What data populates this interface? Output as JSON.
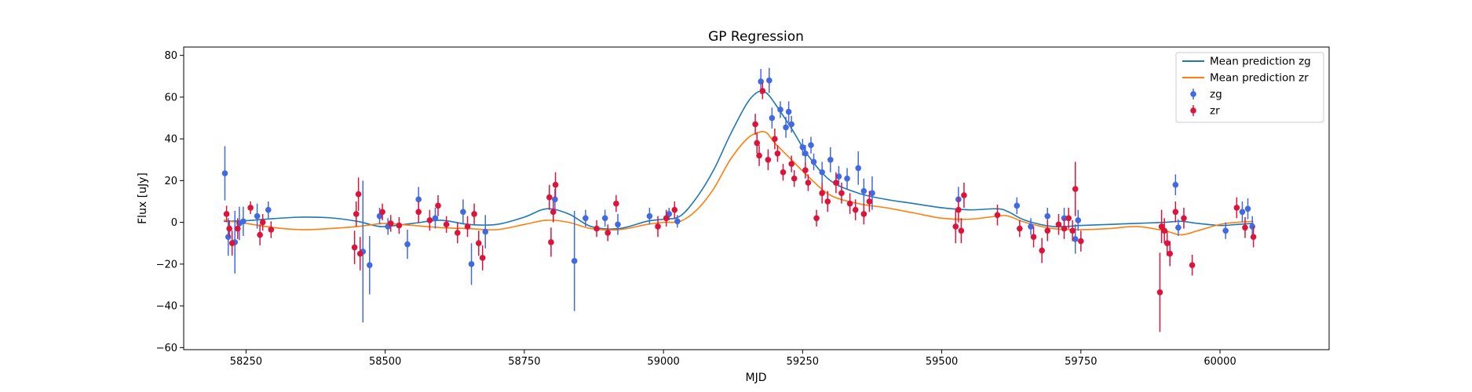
{
  "chart_data": {
    "type": "scatter",
    "title": "GP Regression",
    "xlabel": "MJD",
    "ylabel": "Flux [uJy]",
    "xlim": [
      58138,
      60196
    ],
    "ylim": [
      -61,
      84
    ],
    "xticks": [
      58250,
      58500,
      58750,
      59000,
      59250,
      59500,
      59750,
      60000
    ],
    "yticks": [
      -60,
      -40,
      -20,
      0,
      20,
      40,
      60,
      80
    ],
    "legend_position": "top-right",
    "colors": {
      "zg_line": "#1f77b4",
      "zr_line": "#ff7f0e",
      "zg_points": "#4169e1",
      "zr_points": "#dc143c"
    },
    "legend": [
      {
        "label": "Mean prediction zg",
        "kind": "line",
        "color": "#1f77b4"
      },
      {
        "label": "Mean prediction zr",
        "kind": "line",
        "color": "#ff7f0e"
      },
      {
        "label": "zg",
        "kind": "errorbar",
        "color": "#4169e1"
      },
      {
        "label": "zr",
        "kind": "errorbar",
        "color": "#dc143c"
      }
    ],
    "series": [
      {
        "name": "Mean prediction zg",
        "kind": "line",
        "color": "#1f77b4",
        "x": [
          58210,
          58250,
          58300,
          58350,
          58400,
          58450,
          58480,
          58500,
          58550,
          58600,
          58650,
          58700,
          58750,
          58790,
          58830,
          58870,
          58920,
          58970,
          59000,
          59030,
          59060,
          59090,
          59120,
          59150,
          59170,
          59185,
          59200,
          59230,
          59260,
          59300,
          59350,
          59400,
          59450,
          59500,
          59550,
          59600,
          59620,
          59650,
          59700,
          59750,
          59800,
          59850,
          59900,
          59930,
          59960,
          60000,
          60030,
          60060
        ],
        "y": [
          0.5,
          0.8,
          1.8,
          2.5,
          2.2,
          0.5,
          -1.5,
          -2,
          -0.5,
          1,
          -1,
          -1,
          2.5,
          6.5,
          4,
          -2,
          -3,
          0.5,
          1.5,
          3,
          12,
          25,
          42,
          57,
          62.5,
          62,
          57,
          45,
          32,
          20,
          14,
          11,
          9,
          7,
          6,
          6.5,
          5,
          1,
          -2,
          -1.5,
          -1,
          -0.5,
          0,
          0.5,
          -0.5,
          -1.5,
          -1,
          -0.5
        ]
      },
      {
        "name": "Mean prediction zr",
        "kind": "line",
        "color": "#ff7f0e",
        "x": [
          58210,
          58250,
          58300,
          58350,
          58400,
          58450,
          58480,
          58500,
          58550,
          58600,
          58650,
          58700,
          58750,
          58790,
          58830,
          58870,
          58920,
          58970,
          59000,
          59030,
          59060,
          59090,
          59120,
          59150,
          59170,
          59185,
          59200,
          59230,
          59260,
          59300,
          59350,
          59400,
          59450,
          59500,
          59550,
          59600,
          59620,
          59650,
          59700,
          59750,
          59800,
          59850,
          59900,
          59930,
          59960,
          60000,
          60030,
          60060
        ],
        "y": [
          1,
          -0.5,
          -2.5,
          -3.5,
          -3,
          -2,
          -1,
          -0.5,
          -1.5,
          -2.5,
          -3,
          -3.5,
          -1,
          1,
          0,
          -3,
          -3.5,
          -1,
          0,
          0.5,
          6,
          16,
          30,
          40,
          43,
          43,
          38,
          30,
          22,
          13,
          9,
          7,
          4.5,
          2,
          1.5,
          3,
          3,
          0,
          -3,
          -3.5,
          -3,
          -2,
          -4,
          -6,
          -4,
          -1,
          0,
          0.5
        ]
      },
      {
        "name": "zg",
        "kind": "errorbar",
        "color": "#4169e1",
        "points": [
          {
            "x": 58212,
            "y": 23.5,
            "err": 13
          },
          {
            "x": 58218,
            "y": -7,
            "err": 9
          },
          {
            "x": 58230,
            "y": -9.5,
            "err": 15
          },
          {
            "x": 58238,
            "y": -0.5,
            "err": 8
          },
          {
            "x": 58245,
            "y": 0.5,
            "err": 7
          },
          {
            "x": 58270,
            "y": 3,
            "err": 6
          },
          {
            "x": 58290,
            "y": 6,
            "err": 4
          },
          {
            "x": 58460,
            "y": -14,
            "err": 34
          },
          {
            "x": 58472,
            "y": -20.5,
            "err": 14
          },
          {
            "x": 58490,
            "y": 3,
            "err": 4
          },
          {
            "x": 58505,
            "y": -2,
            "err": 4
          },
          {
            "x": 58540,
            "y": -10.5,
            "err": 7
          },
          {
            "x": 58560,
            "y": 11,
            "err": 6
          },
          {
            "x": 58590,
            "y": 2,
            "err": 5
          },
          {
            "x": 58640,
            "y": 5,
            "err": 6
          },
          {
            "x": 58655,
            "y": -20,
            "err": 10
          },
          {
            "x": 58680,
            "y": -4.5,
            "err": 8
          },
          {
            "x": 58805,
            "y": 11,
            "err": 5
          },
          {
            "x": 58840,
            "y": -18.5,
            "err": 24
          },
          {
            "x": 58860,
            "y": 2,
            "err": 4
          },
          {
            "x": 58895,
            "y": 2,
            "err": 4
          },
          {
            "x": 58918,
            "y": -1,
            "err": 5
          },
          {
            "x": 58975,
            "y": 3,
            "err": 4
          },
          {
            "x": 59010,
            "y": 4,
            "err": 3
          },
          {
            "x": 59025,
            "y": 0.5,
            "err": 3
          },
          {
            "x": 59175,
            "y": 67.5,
            "err": 6
          },
          {
            "x": 59190,
            "y": 68,
            "err": 6
          },
          {
            "x": 59195,
            "y": 50,
            "err": 5
          },
          {
            "x": 59210,
            "y": 54,
            "err": 4
          },
          {
            "x": 59220,
            "y": 45.5,
            "err": 5
          },
          {
            "x": 59225,
            "y": 53,
            "err": 5
          },
          {
            "x": 59230,
            "y": 47,
            "err": 4
          },
          {
            "x": 59250,
            "y": 36,
            "err": 4
          },
          {
            "x": 59255,
            "y": 33,
            "err": 4
          },
          {
            "x": 59265,
            "y": 37,
            "err": 4
          },
          {
            "x": 59270,
            "y": 29,
            "err": 4
          },
          {
            "x": 59285,
            "y": 24,
            "err": 5
          },
          {
            "x": 59300,
            "y": 30,
            "err": 6
          },
          {
            "x": 59315,
            "y": 22,
            "err": 5
          },
          {
            "x": 59330,
            "y": 21,
            "err": 5
          },
          {
            "x": 59350,
            "y": 26,
            "err": 8
          },
          {
            "x": 59360,
            "y": 15,
            "err": 6
          },
          {
            "x": 59375,
            "y": 14,
            "err": 8
          },
          {
            "x": 59530,
            "y": 11,
            "err": 6
          },
          {
            "x": 59635,
            "y": 8,
            "err": 4
          },
          {
            "x": 59660,
            "y": -2,
            "err": 4
          },
          {
            "x": 59690,
            "y": 3,
            "err": 4
          },
          {
            "x": 59720,
            "y": 2,
            "err": 5
          },
          {
            "x": 59740,
            "y": -8,
            "err": 7
          },
          {
            "x": 59745,
            "y": 1,
            "err": 5
          },
          {
            "x": 59920,
            "y": 18,
            "err": 5
          },
          {
            "x": 59925,
            "y": -2.5,
            "err": 4
          },
          {
            "x": 60010,
            "y": -4,
            "err": 4
          },
          {
            "x": 60040,
            "y": 5,
            "err": 5
          },
          {
            "x": 60050,
            "y": 6.5,
            "err": 5
          },
          {
            "x": 60058,
            "y": -2,
            "err": 5
          }
        ]
      },
      {
        "name": "zr",
        "kind": "errorbar",
        "color": "#dc143c",
        "points": [
          {
            "x": 58215,
            "y": 4,
            "err": 4
          },
          {
            "x": 58220,
            "y": -3,
            "err": 4
          },
          {
            "x": 58225,
            "y": -10,
            "err": 6
          },
          {
            "x": 58235,
            "y": -3,
            "err": 5
          },
          {
            "x": 58258,
            "y": 7,
            "err": 3
          },
          {
            "x": 58275,
            "y": -6,
            "err": 5
          },
          {
            "x": 58280,
            "y": 0,
            "err": 4
          },
          {
            "x": 58295,
            "y": -3.5,
            "err": 4
          },
          {
            "x": 58445,
            "y": -12,
            "err": 8
          },
          {
            "x": 58448,
            "y": 4,
            "err": 6
          },
          {
            "x": 58452,
            "y": 13.5,
            "err": 8
          },
          {
            "x": 58455,
            "y": -15,
            "err": 8
          },
          {
            "x": 58495,
            "y": 5,
            "err": 4
          },
          {
            "x": 58510,
            "y": -0.5,
            "err": 4
          },
          {
            "x": 58525,
            "y": -1.5,
            "err": 4
          },
          {
            "x": 58560,
            "y": 5,
            "err": 5
          },
          {
            "x": 58580,
            "y": 1,
            "err": 5
          },
          {
            "x": 58595,
            "y": 8,
            "err": 5
          },
          {
            "x": 58610,
            "y": -1,
            "err": 4
          },
          {
            "x": 58630,
            "y": -5,
            "err": 5
          },
          {
            "x": 58648,
            "y": -2,
            "err": 5
          },
          {
            "x": 58660,
            "y": 4,
            "err": 5
          },
          {
            "x": 58668,
            "y": -10,
            "err": 6
          },
          {
            "x": 58675,
            "y": -17,
            "err": 6
          },
          {
            "x": 58795,
            "y": 12,
            "err": 6
          },
          {
            "x": 58798,
            "y": -9.5,
            "err": 7
          },
          {
            "x": 58802,
            "y": 5,
            "err": 5
          },
          {
            "x": 58806,
            "y": 18,
            "err": 6
          },
          {
            "x": 58880,
            "y": -3,
            "err": 4
          },
          {
            "x": 58900,
            "y": -5,
            "err": 4
          },
          {
            "x": 58915,
            "y": 9,
            "err": 4
          },
          {
            "x": 58990,
            "y": -2,
            "err": 5
          },
          {
            "x": 59005,
            "y": 2,
            "err": 4
          },
          {
            "x": 59020,
            "y": 6,
            "err": 4
          },
          {
            "x": 59165,
            "y": 47,
            "err": 5
          },
          {
            "x": 59168,
            "y": 38,
            "err": 5
          },
          {
            "x": 59172,
            "y": 32,
            "err": 5
          },
          {
            "x": 59178,
            "y": 63,
            "err": 4
          },
          {
            "x": 59188,
            "y": 30,
            "err": 5
          },
          {
            "x": 59200,
            "y": 40,
            "err": 5
          },
          {
            "x": 59205,
            "y": 33,
            "err": 4
          },
          {
            "x": 59215,
            "y": 24,
            "err": 4
          },
          {
            "x": 59230,
            "y": 28,
            "err": 4
          },
          {
            "x": 59235,
            "y": 21,
            "err": 4
          },
          {
            "x": 59255,
            "y": 25,
            "err": 4
          },
          {
            "x": 59260,
            "y": 19,
            "err": 4
          },
          {
            "x": 59275,
            "y": 2,
            "err": 4
          },
          {
            "x": 59285,
            "y": 14,
            "err": 5
          },
          {
            "x": 59295,
            "y": 10,
            "err": 5
          },
          {
            "x": 59310,
            "y": 19,
            "err": 5
          },
          {
            "x": 59320,
            "y": 14,
            "err": 5
          },
          {
            "x": 59335,
            "y": 9,
            "err": 5
          },
          {
            "x": 59345,
            "y": 6,
            "err": 5
          },
          {
            "x": 59360,
            "y": 4,
            "err": 5
          },
          {
            "x": 59370,
            "y": 10,
            "err": 5
          },
          {
            "x": 59525,
            "y": -2,
            "err": 8
          },
          {
            "x": 59530,
            "y": 6,
            "err": 6
          },
          {
            "x": 59535,
            "y": -4,
            "err": 6
          },
          {
            "x": 59540,
            "y": 13,
            "err": 6
          },
          {
            "x": 59600,
            "y": 3.5,
            "err": 5
          },
          {
            "x": 59640,
            "y": -3,
            "err": 4
          },
          {
            "x": 59665,
            "y": -7,
            "err": 5
          },
          {
            "x": 59680,
            "y": -13.5,
            "err": 6
          },
          {
            "x": 59690,
            "y": -4,
            "err": 5
          },
          {
            "x": 59710,
            "y": -1,
            "err": 5
          },
          {
            "x": 59720,
            "y": -3,
            "err": 5
          },
          {
            "x": 59728,
            "y": 2,
            "err": 5
          },
          {
            "x": 59735,
            "y": -4,
            "err": 5
          },
          {
            "x": 59740,
            "y": 16,
            "err": 13
          },
          {
            "x": 59750,
            "y": -9,
            "err": 5
          },
          {
            "x": 59892,
            "y": -33.5,
            "err": 19
          },
          {
            "x": 59895,
            "y": -2,
            "err": 8
          },
          {
            "x": 59900,
            "y": -4,
            "err": 6
          },
          {
            "x": 59905,
            "y": -10,
            "err": 6
          },
          {
            "x": 59910,
            "y": -15,
            "err": 6
          },
          {
            "x": 59920,
            "y": 5,
            "err": 5
          },
          {
            "x": 59935,
            "y": 2,
            "err": 5
          },
          {
            "x": 59950,
            "y": -20.5,
            "err": 5
          },
          {
            "x": 60030,
            "y": 7,
            "err": 5
          },
          {
            "x": 60045,
            "y": -2.5,
            "err": 5
          },
          {
            "x": 60060,
            "y": -7,
            "err": 5
          }
        ]
      }
    ]
  }
}
